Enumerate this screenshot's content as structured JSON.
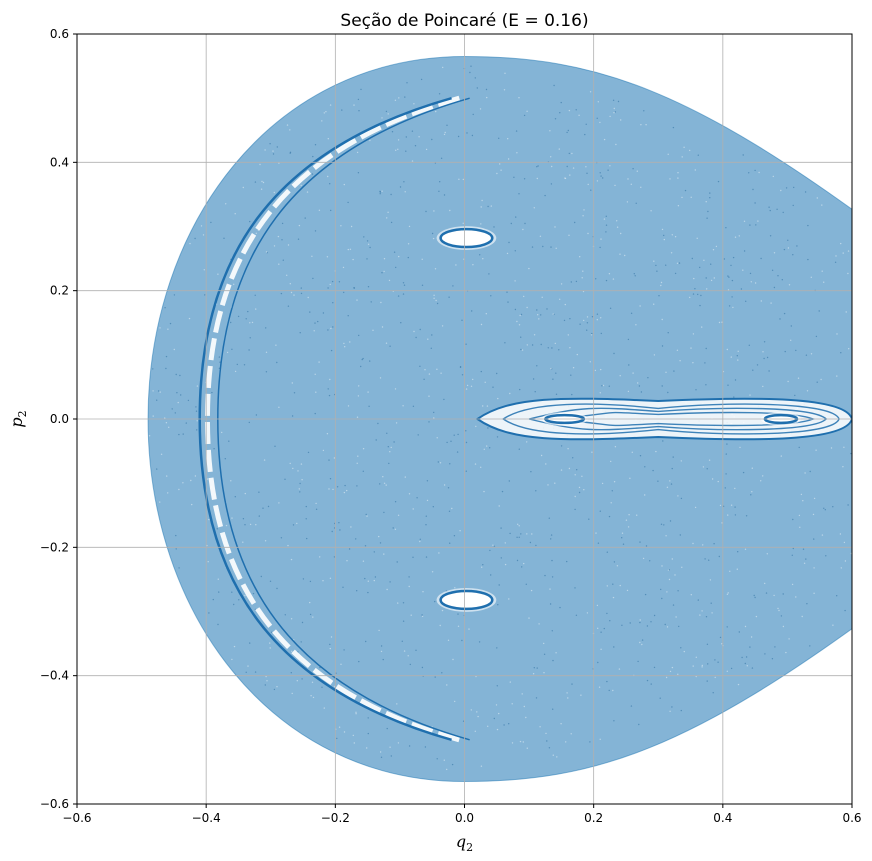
{
  "chart_data": {
    "type": "scatter",
    "title": "Seção de Poincaré (E = 0.16)",
    "xlabel": "q",
    "xlabel_sub": "2",
    "ylabel": "p",
    "ylabel_sub": "2",
    "xlim": [
      -0.6,
      0.6
    ],
    "ylim": [
      -0.6,
      0.6
    ],
    "xticks": [
      -0.6,
      -0.4,
      -0.2,
      0.0,
      0.2,
      0.4,
      0.6
    ],
    "yticks": [
      -0.6,
      -0.4,
      -0.2,
      0.0,
      0.2,
      0.4,
      0.6
    ],
    "xtick_labels": [
      "−0.6",
      "−0.4",
      "−0.2",
      "0.0",
      "0.2",
      "0.4",
      "0.6"
    ],
    "ytick_labels": [
      "−0.6",
      "−0.4",
      "−0.2",
      "0.0",
      "0.2",
      "0.4",
      "0.6"
    ],
    "grid": true,
    "energy": 0.16,
    "point_color": "#1f77b4",
    "series": [
      {
        "boundary": {
          "q_min": -0.49,
          "q_right_edge": 0.6,
          "p_max": 0.565,
          "p_at_right_edge": 0.32
        },
        "islands": [
          {
            "q": 0.003,
            "p": 0.282,
            "half_width_q": 0.04,
            "half_height_p": 0.014
          },
          {
            "q": 0.003,
            "p": -0.282,
            "half_width_q": 0.04,
            "half_height_p": 0.014
          },
          {
            "q": 0.155,
            "p": 0.0,
            "half_width_q": 0.03,
            "half_height_p": 0.006
          },
          {
            "q": 0.49,
            "p": 0.0,
            "half_width_q": 0.025,
            "half_height_p": 0.006
          }
        ],
        "central_band": {
          "q_start": 0.02,
          "q_end": 0.6,
          "p_center": 0.0,
          "half_height_p": 0.035
        },
        "arc_curve": {
          "q_left": -0.41,
          "p_top": 0.5,
          "p_bottom": -0.5,
          "q_tip": -0.02
        }
      }
    ]
  }
}
